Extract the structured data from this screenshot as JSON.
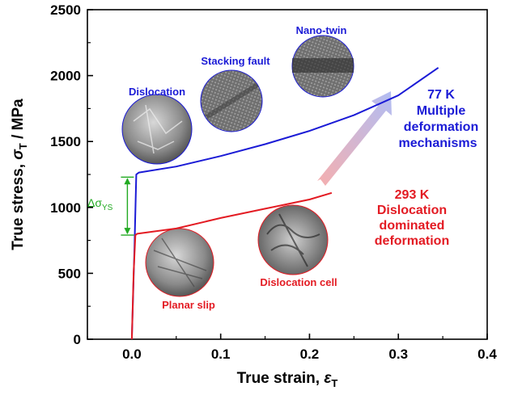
{
  "chart_data": {
    "type": "line",
    "xlabel": "True strain, ",
    "xlabel_symbol": "ε",
    "xlabel_sub": "T",
    "ylabel": "True stress, ",
    "ylabel_symbol": "σ",
    "ylabel_sub": "T",
    "ylabel_unit": " / MPa",
    "xlim": [
      -0.05,
      0.4
    ],
    "ylim": [
      0,
      2500
    ],
    "xticks": [
      0.0,
      0.1,
      0.2,
      0.3,
      0.4
    ],
    "xtick_labels": [
      "0.0",
      "0.1",
      "0.2",
      "0.3",
      "0.4"
    ],
    "yticks": [
      0,
      500,
      1000,
      1500,
      2000,
      2500
    ],
    "ytick_labels": [
      "0",
      "500",
      "1000",
      "1500",
      "2000",
      "2500"
    ],
    "series": [
      {
        "name": "77 K",
        "color": "#1b1bd6",
        "points": [
          [
            0.0,
            0
          ],
          [
            0.003,
            700
          ],
          [
            0.005,
            1250
          ],
          [
            0.008,
            1265
          ],
          [
            0.05,
            1310
          ],
          [
            0.1,
            1390
          ],
          [
            0.15,
            1480
          ],
          [
            0.2,
            1580
          ],
          [
            0.25,
            1700
          ],
          [
            0.3,
            1850
          ],
          [
            0.345,
            2060
          ]
        ]
      },
      {
        "name": "293 K",
        "color": "#e31b23",
        "points": [
          [
            0.0,
            0
          ],
          [
            0.002,
            500
          ],
          [
            0.004,
            790
          ],
          [
            0.006,
            800
          ],
          [
            0.05,
            840
          ],
          [
            0.1,
            920
          ],
          [
            0.15,
            990
          ],
          [
            0.2,
            1060
          ],
          [
            0.225,
            1110
          ]
        ]
      }
    ],
    "delta_label_prefix": "Δσ",
    "delta_label_sub": "YS",
    "delta_range": [
      790,
      1230
    ],
    "delta_color": "#22aa22",
    "annotations": {
      "blue": {
        "color": "#1b1bd6",
        "temperature": "77 K",
        "line1": "Multiple",
        "line2": "deformation",
        "line3": "mechanisms",
        "micrographs": [
          "Dislocation",
          "Stacking fault",
          "Nano-twin"
        ]
      },
      "red": {
        "color": "#e31b23",
        "temperature": "293 K",
        "line1": "Dislocation",
        "line2": "dominated",
        "line3": "deformation",
        "micrographs": [
          "Planar slip",
          "Dislocation cell"
        ]
      }
    }
  }
}
